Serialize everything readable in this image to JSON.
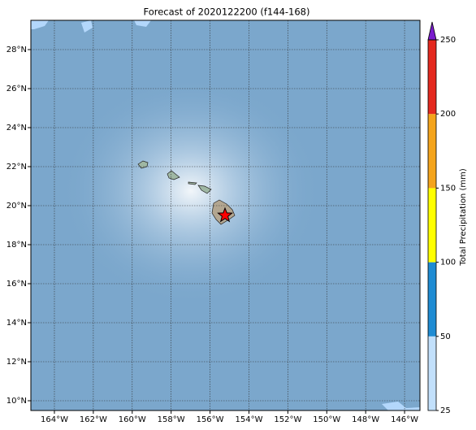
{
  "title": "Forecast of 2020122200 (f144-168)",
  "map": {
    "xlim": [
      -165.21,
      -145.21
    ],
    "ylim": [
      9.5,
      29.5
    ],
    "xticks": [
      {
        "value": -164,
        "label": "164°W"
      },
      {
        "value": -162,
        "label": "162°W"
      },
      {
        "value": -160,
        "label": "160°W"
      },
      {
        "value": -158,
        "label": "158°W"
      },
      {
        "value": -156,
        "label": "156°W"
      },
      {
        "value": -154,
        "label": "154°W"
      },
      {
        "value": -152,
        "label": "152°W"
      },
      {
        "value": -150,
        "label": "150°W"
      },
      {
        "value": -148,
        "label": "148°W"
      },
      {
        "value": -146,
        "label": "146°W"
      }
    ],
    "yticks": [
      {
        "value": 10,
        "label": "10°N"
      },
      {
        "value": 12,
        "label": "12°N"
      },
      {
        "value": 14,
        "label": "14°N"
      },
      {
        "value": 16,
        "label": "16°N"
      },
      {
        "value": 18,
        "label": "18°N"
      },
      {
        "value": 20,
        "label": "20°N"
      },
      {
        "value": 22,
        "label": "22°N"
      },
      {
        "value": 24,
        "label": "24°N"
      },
      {
        "value": 26,
        "label": "26°N"
      },
      {
        "value": 28,
        "label": "28°N"
      }
    ],
    "grid": true,
    "ocean_color": "#7ba7cc",
    "marker": {
      "lon": -155.23,
      "lat": 19.5,
      "color": "#ff0000"
    }
  },
  "colorbar": {
    "label": "Total Precipitation (mm)",
    "levels": [
      25,
      50,
      100,
      150,
      200,
      250
    ],
    "colors": [
      "#c2e0fb",
      "#1f8cd3",
      "#ffff00",
      "#f4a41c",
      "#e4291f"
    ],
    "extend_color": "#7a1ccd"
  }
}
